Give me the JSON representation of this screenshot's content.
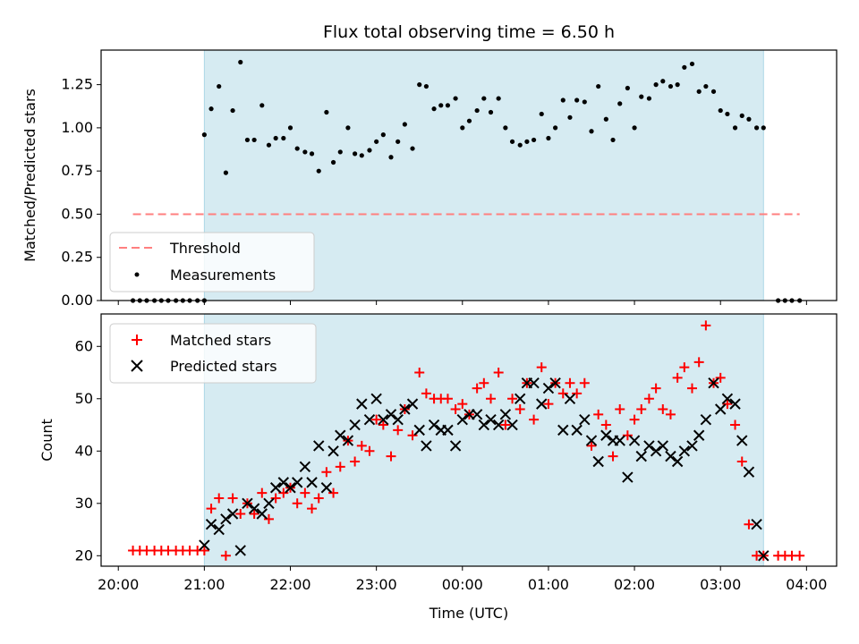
{
  "colors": {
    "observing_window": "#add8e6",
    "threshold": "#ff7f7f",
    "measurements": "#000000",
    "matched": "#ff0000",
    "predicted": "#000000"
  },
  "chart_data": [
    {
      "type": "scatter",
      "title": "Flux total observing time = 6.50 h",
      "xlabel": "",
      "ylabel": "Matched/Predicted stars",
      "ylim": [
        0.0,
        1.45
      ],
      "xlim_hours": [
        19.8,
        28.35
      ],
      "y_ticks": [
        "0.00",
        "0.25",
        "0.50",
        "0.75",
        "1.00",
        "1.25"
      ],
      "x_tick_values": [
        20,
        21,
        22,
        23,
        24,
        25,
        26,
        27,
        28
      ],
      "observing_window_hours": [
        21.0,
        27.5
      ],
      "grid": false,
      "legend_placement": "lower-left",
      "legend": [
        "Threshold",
        "Measurements"
      ],
      "threshold": {
        "name": "Threshold",
        "y": 0.5,
        "x_range_hours": [
          20.17,
          27.92
        ]
      },
      "measurements": {
        "name": "Measurements",
        "x_hours": [
          20.17,
          20.25,
          20.33,
          20.42,
          20.5,
          20.58,
          20.67,
          20.75,
          20.83,
          20.92,
          21.0,
          21.0,
          21.08,
          21.17,
          21.25,
          21.33,
          21.42,
          21.5,
          21.58,
          21.67,
          21.75,
          21.83,
          21.92,
          22.0,
          22.08,
          22.17,
          22.25,
          22.33,
          22.42,
          22.5,
          22.58,
          22.67,
          22.75,
          22.83,
          22.92,
          23.0,
          23.08,
          23.17,
          23.25,
          23.33,
          23.42,
          23.5,
          23.58,
          23.67,
          23.75,
          23.83,
          23.92,
          24.0,
          24.08,
          24.17,
          24.25,
          24.33,
          24.42,
          24.5,
          24.58,
          24.67,
          24.75,
          24.83,
          24.92,
          25.0,
          25.08,
          25.17,
          25.25,
          25.33,
          25.42,
          25.5,
          25.58,
          25.67,
          25.75,
          25.83,
          25.92,
          26.0,
          26.08,
          26.17,
          26.25,
          26.33,
          26.42,
          26.5,
          26.58,
          26.67,
          26.75,
          26.83,
          26.92,
          27.0,
          27.08,
          27.17,
          27.25,
          27.33,
          27.42,
          27.5,
          27.58,
          27.67,
          27.75,
          27.83,
          27.92
        ],
        "y": [
          0,
          0,
          0,
          0,
          0,
          0,
          0,
          0,
          0,
          0,
          0,
          0.96,
          1.11,
          1.24,
          0.74,
          1.1,
          1.38,
          0.93,
          0.93,
          1.13,
          0.9,
          0.94,
          0.94,
          1.0,
          0.88,
          0.86,
          0.85,
          0.75,
          1.09,
          0.8,
          0.86,
          1.0,
          0.85,
          0.84,
          0.87,
          0.92,
          0.96,
          0.83,
          0.92,
          1.02,
          0.88,
          1.25,
          1.24,
          1.11,
          1.13,
          1.13,
          1.17,
          1.0,
          1.04,
          1.1,
          1.17,
          1.09,
          1.17,
          1.0,
          0.92,
          0.9,
          0.92,
          0.93,
          1.08,
          0.94,
          1.0,
          1.16,
          1.06,
          1.16,
          1.15,
          0.98,
          1.24,
          1.05,
          0.93,
          1.14,
          1.23,
          1.0,
          1.18,
          1.17,
          1.25,
          1.27,
          1.24,
          1.25,
          1.35,
          1.37,
          1.21,
          1.24,
          1.21,
          1.1,
          1.08,
          1.0,
          1.07,
          1.05,
          1.0,
          1.0,
          null,
          0,
          0,
          0,
          0
        ]
      }
    },
    {
      "type": "scatter",
      "title": "",
      "xlabel": "Time (UTC)",
      "ylabel": "Count",
      "ylim": [
        18,
        66.2
      ],
      "xlim_hours": [
        19.8,
        28.35
      ],
      "y_ticks": [
        "20",
        "30",
        "40",
        "50",
        "60"
      ],
      "x_tick_values": [
        20,
        21,
        22,
        23,
        24,
        25,
        26,
        27,
        28
      ],
      "x_tick_labels": [
        "20:00",
        "21:00",
        "22:00",
        "23:00",
        "00:00",
        "01:00",
        "02:00",
        "03:00",
        "04:00"
      ],
      "observing_window_hours": [
        21.0,
        27.5
      ],
      "grid": false,
      "legend_placement": "upper-left",
      "legend": [
        "Matched stars",
        "Predicted stars"
      ],
      "series": [
        {
          "name": "Matched stars",
          "marker": "plus",
          "x_hours": [
            20.17,
            20.25,
            20.33,
            20.42,
            20.5,
            20.58,
            20.67,
            20.75,
            20.83,
            20.92,
            21.0,
            21.08,
            21.17,
            21.25,
            21.33,
            21.42,
            21.5,
            21.58,
            21.67,
            21.75,
            21.83,
            21.92,
            22.0,
            22.08,
            22.17,
            22.25,
            22.33,
            22.42,
            22.5,
            22.58,
            22.67,
            22.75,
            22.83,
            22.92,
            23.0,
            23.08,
            23.17,
            23.25,
            23.33,
            23.42,
            23.5,
            23.58,
            23.67,
            23.75,
            23.83,
            23.92,
            24.0,
            24.08,
            24.17,
            24.25,
            24.33,
            24.42,
            24.5,
            24.58,
            24.67,
            24.75,
            24.83,
            24.92,
            25.0,
            25.08,
            25.17,
            25.25,
            25.33,
            25.42,
            25.5,
            25.58,
            25.67,
            25.75,
            25.83,
            25.92,
            26.0,
            26.08,
            26.17,
            26.25,
            26.33,
            26.42,
            26.5,
            26.58,
            26.67,
            26.75,
            26.83,
            26.92,
            27.0,
            27.08,
            27.17,
            27.25,
            27.33,
            27.42,
            27.5,
            27.67,
            27.75,
            27.83,
            27.92
          ],
          "y": [
            21,
            21,
            21,
            21,
            21,
            21,
            21,
            21,
            21,
            21,
            21,
            29,
            31,
            20,
            31,
            28,
            30,
            28,
            32,
            27,
            31,
            32,
            33,
            30,
            32,
            29,
            31,
            36,
            32,
            37,
            42,
            38,
            41,
            40,
            46,
            45,
            39,
            44,
            48,
            43,
            55,
            51,
            50,
            50,
            50,
            48,
            49,
            47,
            52,
            53,
            50,
            55,
            45,
            50,
            48,
            53,
            46,
            56,
            49,
            53,
            51,
            53,
            51,
            53,
            41,
            47,
            45,
            39,
            48,
            43,
            46,
            48,
            50,
            52,
            48,
            47,
            54,
            56,
            52,
            57,
            64,
            53,
            54,
            49,
            45,
            38,
            26,
            20,
            20,
            20,
            20,
            20,
            20
          ],
          "color": "#ff0000"
        },
        {
          "name": "Predicted stars",
          "marker": "x",
          "x_hours": [
            21.0,
            21.08,
            21.17,
            21.25,
            21.33,
            21.42,
            21.5,
            21.58,
            21.67,
            21.75,
            21.83,
            21.92,
            22.0,
            22.08,
            22.17,
            22.25,
            22.33,
            22.42,
            22.5,
            22.58,
            22.67,
            22.75,
            22.83,
            22.92,
            23.0,
            23.08,
            23.17,
            23.25,
            23.33,
            23.42,
            23.5,
            23.58,
            23.67,
            23.75,
            23.83,
            23.92,
            24.0,
            24.08,
            24.17,
            24.25,
            24.33,
            24.42,
            24.5,
            24.58,
            24.67,
            24.75,
            24.83,
            24.92,
            25.0,
            25.08,
            25.17,
            25.25,
            25.33,
            25.42,
            25.5,
            25.58,
            25.67,
            25.75,
            25.83,
            25.92,
            26.0,
            26.08,
            26.17,
            26.25,
            26.33,
            26.42,
            26.5,
            26.58,
            26.67,
            26.75,
            26.83,
            26.92,
            27.0,
            27.08,
            27.17,
            27.25,
            27.33,
            27.42,
            27.5
          ],
          "y": [
            22,
            26,
            25,
            27,
            28,
            21,
            30,
            29,
            28,
            30,
            33,
            34,
            33,
            34,
            37,
            34,
            41,
            33,
            40,
            43,
            42,
            45,
            49,
            46,
            50,
            46,
            47,
            46,
            48,
            49,
            44,
            41,
            45,
            44,
            44,
            41,
            46,
            47,
            47,
            45,
            46,
            45,
            47,
            45,
            50,
            53,
            53,
            49,
            52,
            53,
            44,
            50,
            44,
            46,
            42,
            38,
            43,
            42,
            42,
            35,
            42,
            39,
            41,
            40,
            41,
            39,
            38,
            40,
            41,
            43,
            46,
            53,
            48,
            50,
            49,
            42,
            36,
            26,
            20
          ],
          "color": "#000000"
        }
      ]
    }
  ]
}
